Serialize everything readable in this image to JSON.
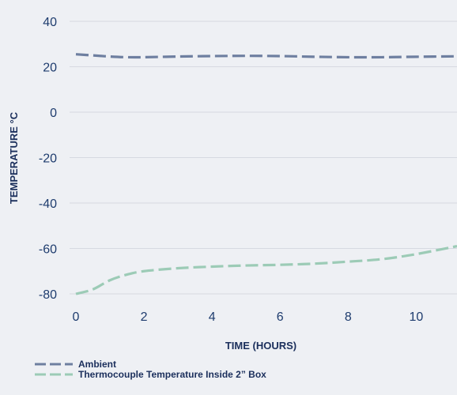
{
  "chart_data": {
    "type": "line",
    "xlabel": "TIME (HOURS)",
    "ylabel": "TEMPERATURE °C",
    "xlim": [
      0,
      11.2
    ],
    "ylim": [
      -80,
      40
    ],
    "x_ticks": [
      0,
      2,
      4,
      6,
      8,
      10
    ],
    "y_ticks": [
      40,
      20,
      0,
      -20,
      -40,
      -60,
      -80
    ],
    "grid": "horizontal",
    "legend_position": "bottom-left",
    "series": [
      {
        "name": "Ambient",
        "color": "#6e7fa0",
        "style": "dashed",
        "x": [
          0,
          0.5,
          1,
          1.5,
          2,
          3,
          4,
          5,
          6,
          7,
          8,
          9,
          10,
          11.2
        ],
        "y": [
          25.5,
          25,
          24.5,
          24.2,
          24.2,
          24.5,
          24.7,
          24.8,
          24.7,
          24.4,
          24.2,
          24.2,
          24.4,
          24.6
        ]
      },
      {
        "name": "Thermocouple Temperature Inside 2” Box",
        "color": "#9ccbb6",
        "style": "dashed",
        "x": [
          0,
          0.5,
          1,
          1.5,
          2,
          3,
          4,
          5,
          6,
          7,
          8,
          9,
          10,
          11.2
        ],
        "y": [
          -80,
          -78,
          -74,
          -71.5,
          -70,
          -68.7,
          -68,
          -67.5,
          -67.2,
          -66.7,
          -65.8,
          -64.7,
          -62.5,
          -59
        ]
      }
    ]
  }
}
